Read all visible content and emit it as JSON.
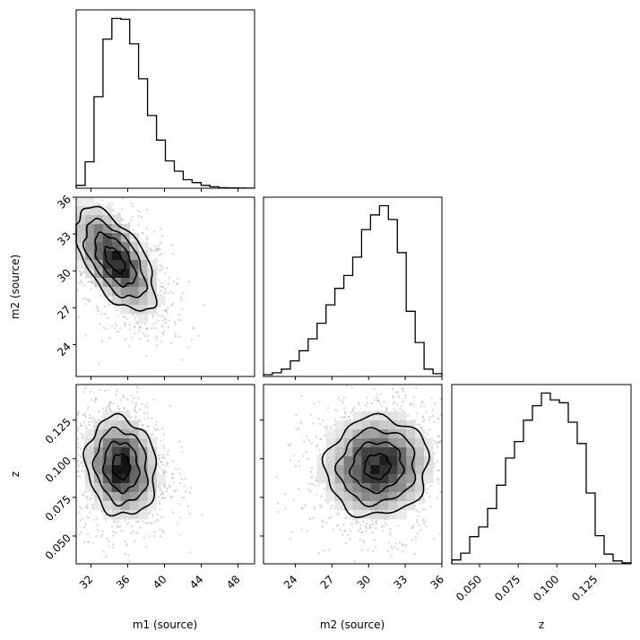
{
  "chart_data": {
    "type": "corner",
    "parameters": [
      "m1 (source)",
      "m2 (source)",
      "z"
    ],
    "ranges": {
      "m1": [
        30.4,
        49.8
      ],
      "m2": [
        21.4,
        36.0
      ],
      "z": [
        0.032,
        0.148
      ]
    },
    "ticks": {
      "m1": [
        "32",
        "36",
        "40",
        "44",
        "48"
      ],
      "m2_x": [
        "24",
        "27",
        "30",
        "33",
        "36"
      ],
      "m2_y": [
        "24",
        "27",
        "30",
        "33",
        "36"
      ],
      "z_x": [
        "0.050",
        "0.075",
        "0.100",
        "0.125"
      ],
      "z_y": [
        "0.050",
        "0.075",
        "0.100",
        "0.125"
      ]
    },
    "histograms": {
      "m1": {
        "bins": [
          30.4,
          31.37,
          32.34,
          33.31,
          34.28,
          35.25,
          36.22,
          37.19,
          38.16,
          39.13,
          40.1,
          41.07,
          42.04,
          43.01,
          43.98,
          44.95,
          45.92,
          46.89,
          47.86,
          48.83,
          49.8
        ],
        "counts": [
          3,
          28,
          97,
          158,
          180,
          179,
          153,
          116,
          77,
          51,
          29,
          18,
          9,
          6,
          3,
          1.5,
          0.6,
          0.3,
          0.2,
          0.1
        ]
      },
      "m2": {
        "bins": [
          21.4,
          22.13,
          22.86,
          23.59,
          24.32,
          25.05,
          25.78,
          26.51,
          27.24,
          27.97,
          28.7,
          29.43,
          30.16,
          30.89,
          31.62,
          32.35,
          33.08,
          33.81,
          34.54,
          35.27,
          36.0
        ],
        "counts": [
          2,
          4,
          8,
          17,
          28,
          41,
          58,
          78,
          96,
          110,
          130,
          160,
          176,
          186,
          171,
          135,
          71,
          37,
          8,
          3
        ]
      },
      "z": {
        "bins": [
          0.032,
          0.0378,
          0.0436,
          0.0494,
          0.0552,
          0.061,
          0.0668,
          0.0726,
          0.0784,
          0.0842,
          0.09,
          0.0958,
          0.1016,
          0.1074,
          0.1132,
          0.119,
          0.1248,
          0.1306,
          0.1364,
          0.1422,
          0.148
        ],
        "counts": [
          4,
          11,
          28,
          38,
          57,
          81,
          109,
          126,
          148,
          163,
          176,
          169,
          166,
          146,
          124,
          73,
          29,
          10,
          3,
          1
        ]
      }
    },
    "joint_peaks": {
      "m1_m2": [
        34.2,
        32.5
      ],
      "m1_z": [
        35.0,
        0.093
      ],
      "m2_z": [
        31.4,
        0.098
      ]
    },
    "style": {
      "line_color": "#000000",
      "density_color": "#000000",
      "grid": false
    }
  }
}
